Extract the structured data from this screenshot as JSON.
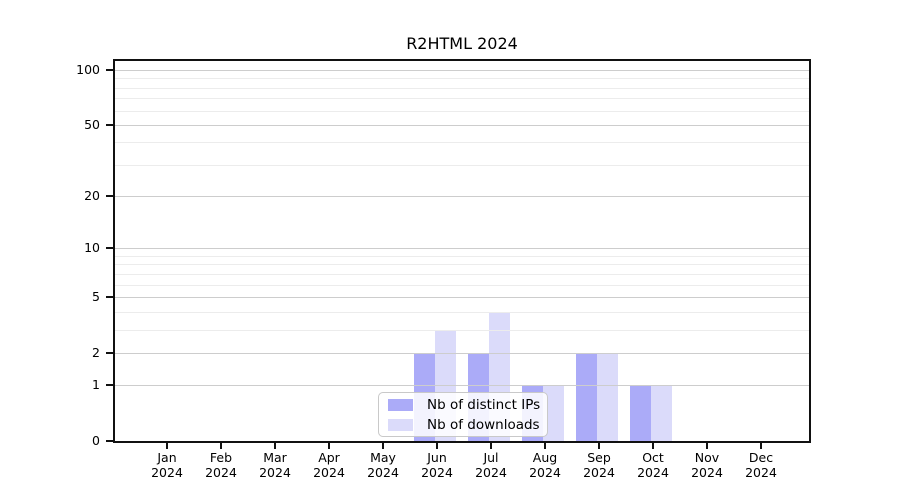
{
  "chart_data": {
    "type": "bar",
    "title": "R2HTML 2024",
    "categories": [
      "Jan",
      "Feb",
      "Mar",
      "Apr",
      "May",
      "Jun",
      "Jul",
      "Aug",
      "Sep",
      "Oct",
      "Nov",
      "Dec"
    ],
    "x_tick_sublabel": "2024",
    "series": [
      {
        "name": "Nb of distinct IPs",
        "color": "#ababf8",
        "values": [
          0,
          0,
          0,
          0,
          0,
          2,
          2,
          1,
          2,
          1,
          0,
          0
        ]
      },
      {
        "name": "Nb of downloads",
        "color": "#dbdbfa",
        "values": [
          0,
          0,
          0,
          0,
          0,
          3,
          4,
          1,
          2,
          1,
          0,
          0
        ]
      }
    ],
    "y_axis": {
      "scale": "log1p",
      "tick_values": [
        0,
        1,
        2,
        5,
        10,
        20,
        50,
        100
      ],
      "tick_labels": [
        "0",
        "1",
        "2",
        "5",
        "10",
        "20",
        "50",
        "100"
      ],
      "minor_gridline_values": [
        3,
        4,
        6,
        7,
        8,
        9,
        30,
        40,
        60,
        70,
        80,
        90
      ],
      "axis_max_value": 115
    },
    "grid": {
      "major_color": "#cdcdcd",
      "minor_color": "#ececec",
      "shown": true
    },
    "legend_position": "bottom-center"
  }
}
